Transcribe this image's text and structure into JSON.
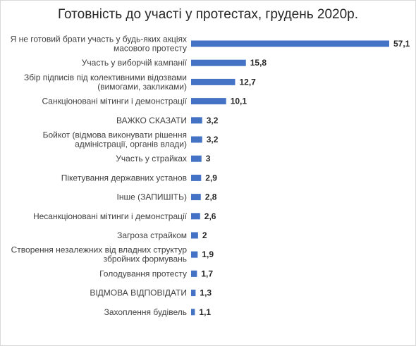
{
  "chart_data": {
    "type": "bar",
    "orientation": "horizontal",
    "title": "Готовність до участі у протестах, грудень 2020р.",
    "categories": [
      [
        "Я не готовий брати участь у будь-яких акціях",
        "масового протесту"
      ],
      [
        "Участь у виборчій кампанії"
      ],
      [
        "Збір підписів під колективними відозвами",
        "(вимогами, закликами)"
      ],
      [
        "Санкціоновані мітинги і демонстрації"
      ],
      [
        "ВАЖКО СКАЗАТИ"
      ],
      [
        "Бойкот (відмова виконувати рішення",
        "адміністрації, органів влади)"
      ],
      [
        "Участь у страйках"
      ],
      [
        "Пікетування державних установ"
      ],
      [
        "Інше (ЗАПИШІТЬ)"
      ],
      [
        "Несанкціоновані мітинги і демонстрації"
      ],
      [
        "Загроза страйком"
      ],
      [
        "Створення незалежних від владних структур",
        "збройних формувань"
      ],
      [
        "Голодування протесту"
      ],
      [
        "ВІДМОВА ВІДПОВІДАТИ"
      ],
      [
        "Захоплення будівель"
      ]
    ],
    "values": [
      57.1,
      15.8,
      12.7,
      10.1,
      3.2,
      3.2,
      3,
      2.9,
      2.8,
      2.6,
      2,
      1.9,
      1.7,
      1.3,
      1.1
    ],
    "value_labels": [
      "57,1",
      "15,8",
      "12,7",
      "10,1",
      "3,2",
      "3,2",
      "3",
      "2,9",
      "2,8",
      "2,6",
      "2",
      "1,9",
      "1,7",
      "1,3",
      "1,1"
    ],
    "xlim": [
      0,
      57.1
    ],
    "grid": false,
    "legend": "none",
    "bar_color": "#4472c4"
  }
}
